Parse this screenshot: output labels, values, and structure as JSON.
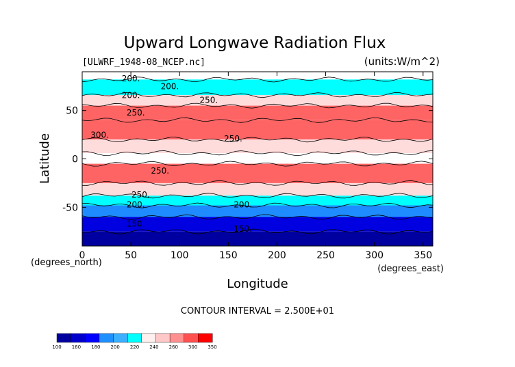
{
  "chart_data": {
    "type": "heatmap",
    "title": "Upward Longwave Radiation Flux",
    "file_label": "[ULWRF_1948-08_NCEP.nc]",
    "units_label": "(units:W/m^2)",
    "xlabel": "Longitude",
    "ylabel": "Latitude",
    "x_unit_note": "(degrees_east)",
    "y_unit_note": "(degrees_north)",
    "xlim": [
      0,
      360
    ],
    "ylim": [
      -90,
      90
    ],
    "x_ticks": [
      0,
      50,
      100,
      150,
      200,
      250,
      300,
      350
    ],
    "y_ticks": [
      -50,
      0,
      50
    ],
    "contour_interval_text": "CONTOUR INTERVAL = 2.500E+01",
    "contour_labels": [
      {
        "text": "200.",
        "lon": 50,
        "lat": 63
      },
      {
        "text": "250.",
        "lon": 55,
        "lat": 45
      },
      {
        "text": "300.",
        "lon": 18,
        "lat": 22
      },
      {
        "text": "250.",
        "lon": 80,
        "lat": -15
      },
      {
        "text": "250.",
        "lon": 60,
        "lat": -40
      },
      {
        "text": "200.",
        "lon": 55,
        "lat": -50
      },
      {
        "text": "150.",
        "lon": 55,
        "lat": -70
      },
      {
        "text": "200.",
        "lon": 50,
        "lat": 80
      },
      {
        "text": "200.",
        "lon": 90,
        "lat": 72
      },
      {
        "text": "250.",
        "lon": 130,
        "lat": 58
      },
      {
        "text": "250.",
        "lon": 155,
        "lat": 18
      },
      {
        "text": "200.",
        "lon": 165,
        "lat": -50
      },
      {
        "text": "150.",
        "lon": 165,
        "lat": -75
      }
    ],
    "colorbar": {
      "labels": [
        "100",
        "160",
        "180",
        "200",
        "220",
        "240",
        "260",
        "300",
        "350"
      ],
      "colors": [
        "#0000a0",
        "#0000cc",
        "#0000ff",
        "#1e90ff",
        "#3cb0ff",
        "#00ffff",
        "#fff0f0",
        "#ffc8c8",
        "#ff9090",
        "#ff5050",
        "#ff0000"
      ]
    },
    "levels_colors": {
      "lt160": "#0000a0",
      "160_180": "#0000e0",
      "180_200": "#1e8cff",
      "200_220": "#00ffff",
      "220_240": "#ffffff",
      "240_260": "#ffdcdc",
      "260_300": "#ff6464",
      "gt300": "#ff0000"
    },
    "bands": [
      {
        "lat_from": 90,
        "lat_to": 82,
        "value": 220
      },
      {
        "lat_from": 82,
        "lat_to": 66,
        "value": 210
      },
      {
        "lat_from": 66,
        "lat_to": 55,
        "value": 245
      },
      {
        "lat_from": 55,
        "lat_to": 40,
        "value": 270
      },
      {
        "lat_from": 40,
        "lat_to": 20,
        "value": 295
      },
      {
        "lat_from": 20,
        "lat_to": 6,
        "value": 250
      },
      {
        "lat_from": 6,
        "lat_to": -5,
        "value": 230
      },
      {
        "lat_from": -5,
        "lat_to": -25,
        "value": 275
      },
      {
        "lat_from": -25,
        "lat_to": -38,
        "value": 250
      },
      {
        "lat_from": -38,
        "lat_to": -48,
        "value": 215
      },
      {
        "lat_from": -48,
        "lat_to": -60,
        "value": 195
      },
      {
        "lat_from": -60,
        "lat_to": -75,
        "value": 170
      },
      {
        "lat_from": -75,
        "lat_to": -90,
        "value": 150
      }
    ]
  }
}
